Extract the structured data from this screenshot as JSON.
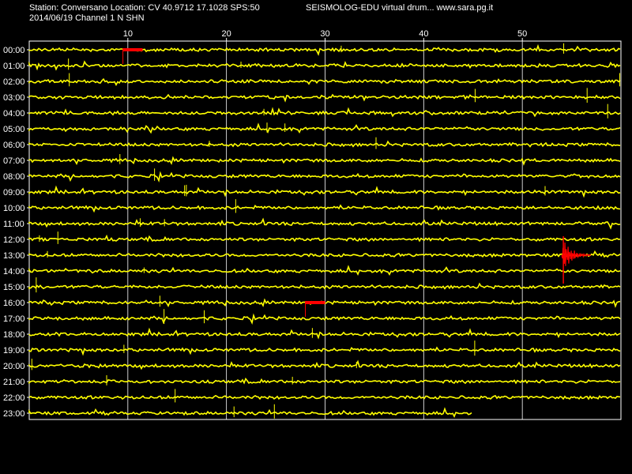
{
  "header": {
    "station_line": "Station: Conversano Location: CV 40.9712 17.1028 SPS:50",
    "program_line": "SEISMOLOG-EDU virtual drum... www.sara.pg.it",
    "date_line": "2014/06/19  Channel 1 N SHN"
  },
  "colors": {
    "background": "#000000",
    "trace": "#ffff00",
    "event": "#ff0000",
    "grid": "#ffffff",
    "text": "#ffffff"
  },
  "chart_data": {
    "type": "line",
    "title": "",
    "xlabel": "",
    "ylabel": "",
    "x_unit": "minute",
    "xlim": [
      0,
      60
    ],
    "x_ticks": [
      10,
      20,
      30,
      40,
      50
    ],
    "grid": true,
    "hours": [
      "00:00",
      "01:00",
      "02:00",
      "03:00",
      "04:00",
      "05:00",
      "06:00",
      "07:00",
      "08:00",
      "09:00",
      "10:00",
      "11:00",
      "12:00",
      "13:00",
      "14:00",
      "15:00",
      "16:00",
      "17:00",
      "18:00",
      "19:00",
      "20:00",
      "21:00",
      "22:00",
      "23:00"
    ],
    "last_trace_end_minute": 45,
    "events": [
      {
        "hour": "00:00",
        "start_minute": 9.5,
        "end_minute": 11.5,
        "color": "#ff0000"
      },
      {
        "hour": "16:00",
        "start_minute": 28,
        "end_minute": 30,
        "color": "#ff0000"
      },
      {
        "hour": "13:00",
        "start_minute": 54,
        "end_minute": 57,
        "color": "#ff0000"
      }
    ]
  }
}
